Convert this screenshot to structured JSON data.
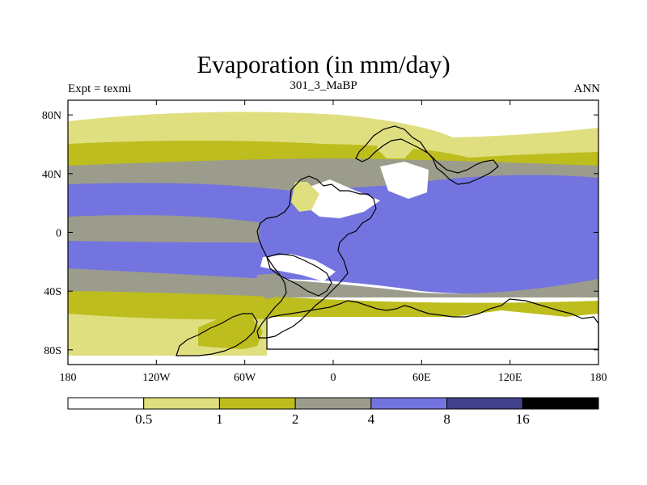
{
  "title": "Evaporation (in mm/day)",
  "subtitle": "301_3_MaBP",
  "left_label": "Expt = texmi",
  "right_label": "ANN",
  "colors": {
    "c0": "#ffffff",
    "c1": "#dfdf80",
    "c2": "#bdbd1e",
    "c3": "#9c9c8c",
    "c4": "#7474e0",
    "c5": "#42428c",
    "c6": "#000000"
  },
  "map": {
    "lon_ticks": [
      "180",
      "120W",
      "60W",
      "0",
      "60E",
      "120E",
      "180"
    ],
    "lat_ticks": [
      "80N",
      "40N",
      "0",
      "40S",
      "80S"
    ]
  },
  "colorbar": {
    "labels": [
      "0.5",
      "1",
      "2",
      "4",
      "8",
      "16"
    ]
  }
}
